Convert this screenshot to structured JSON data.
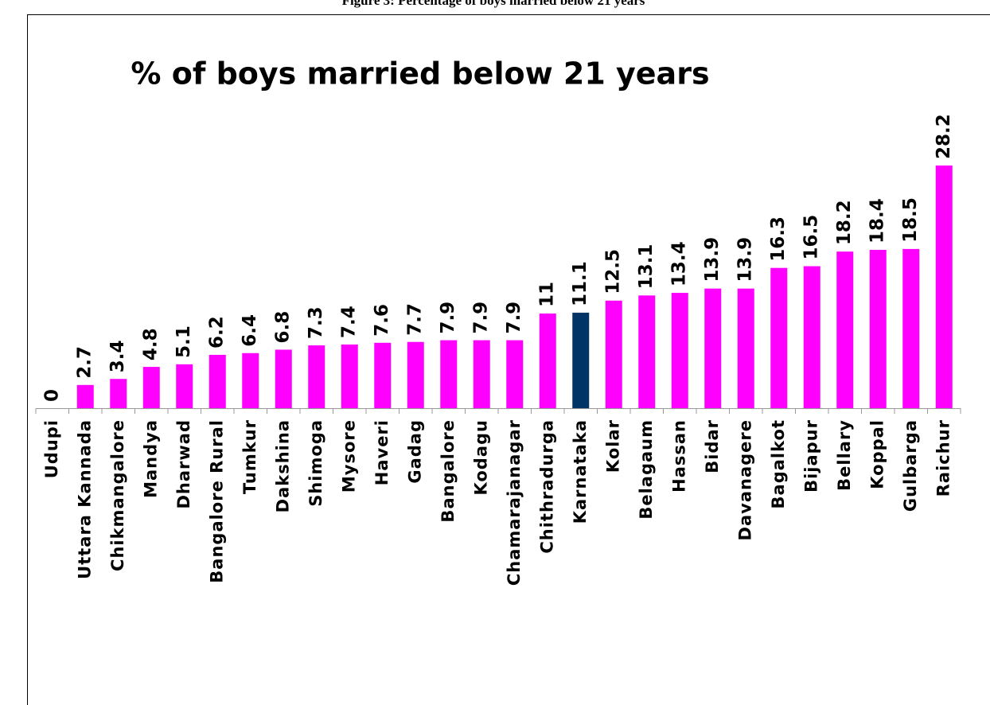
{
  "caption": "Figure 3: Percentage of boys married below 21 years",
  "chart_data": {
    "type": "bar",
    "title": "% of boys married below 21 years",
    "categories": [
      "Udupi",
      "Uttara Kannada",
      "Chikmangalore",
      "Mandya",
      "Dharwad",
      "Bangalore Rural",
      "Tumkur",
      "Dakshina",
      "Shimoga",
      "Mysore",
      "Haveri",
      "Gadag",
      "Bangalore",
      "Kodagu",
      "Chamarajanagar",
      "Chithradurga",
      "Karnataka",
      "Kolar",
      "Belagaum",
      "Hassan",
      "Bidar",
      "Davanagere",
      "Bagalkot",
      "Bijapur",
      "Bellary",
      "Koppal",
      "Gulbarga",
      "Raichur"
    ],
    "values": [
      0,
      2.7,
      3.4,
      4.8,
      5.1,
      6.2,
      6.4,
      6.8,
      7.3,
      7.4,
      7.6,
      7.7,
      7.9,
      7.9,
      7.9,
      11,
      11.1,
      12.5,
      13.1,
      13.4,
      13.9,
      13.9,
      16.3,
      16.5,
      18.2,
      18.4,
      18.5,
      28.2
    ],
    "colors": [
      "#ff00ff",
      "#ff00ff",
      "#ff00ff",
      "#ff00ff",
      "#ff00ff",
      "#ff00ff",
      "#ff00ff",
      "#ff00ff",
      "#ff00ff",
      "#ff00ff",
      "#ff00ff",
      "#ff00ff",
      "#ff00ff",
      "#ff00ff",
      "#ff00ff",
      "#ff00ff",
      "#003366",
      "#ff00ff",
      "#ff00ff",
      "#ff00ff",
      "#ff00ff",
      "#ff00ff",
      "#ff00ff",
      "#ff00ff",
      "#ff00ff",
      "#ff00ff",
      "#ff00ff",
      "#ff00ff"
    ]
  }
}
